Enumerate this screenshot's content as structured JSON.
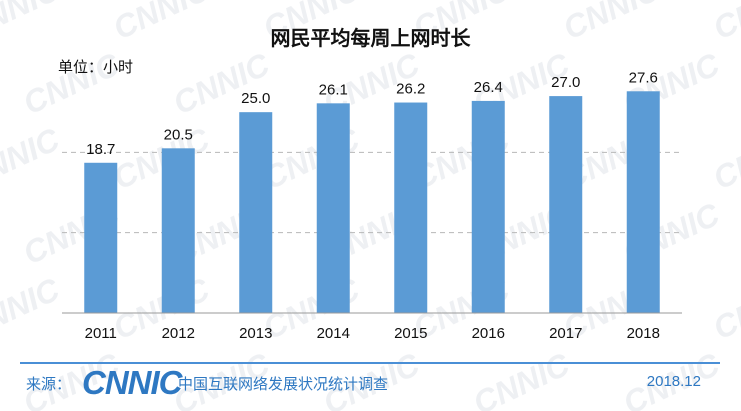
{
  "watermark_text": "CNNIC",
  "colors": {
    "bar": "#5b9bd5",
    "gridline": "#b8b8b8",
    "footer": "#2e78c2"
  },
  "chart_data": {
    "type": "bar",
    "title": "网民平均每周上网时长",
    "unit_label": "单位：小时",
    "categories": [
      "2011",
      "2012",
      "2013",
      "2014",
      "2015",
      "2016",
      "2017",
      "2018"
    ],
    "values": [
      18.7,
      20.5,
      25.0,
      26.1,
      26.2,
      26.4,
      27.0,
      27.6
    ],
    "value_labels": [
      "18.7",
      "20.5",
      "25.0",
      "26.1",
      "26.2",
      "26.4",
      "27.0",
      "27.6"
    ],
    "ylim": [
      0,
      30
    ],
    "grid": true,
    "legend": "none"
  },
  "footer": {
    "source_label": "来源：",
    "logo_text": "CNNIC",
    "organization": "中国互联网络发展状况统计调查",
    "date": "2018.12"
  }
}
